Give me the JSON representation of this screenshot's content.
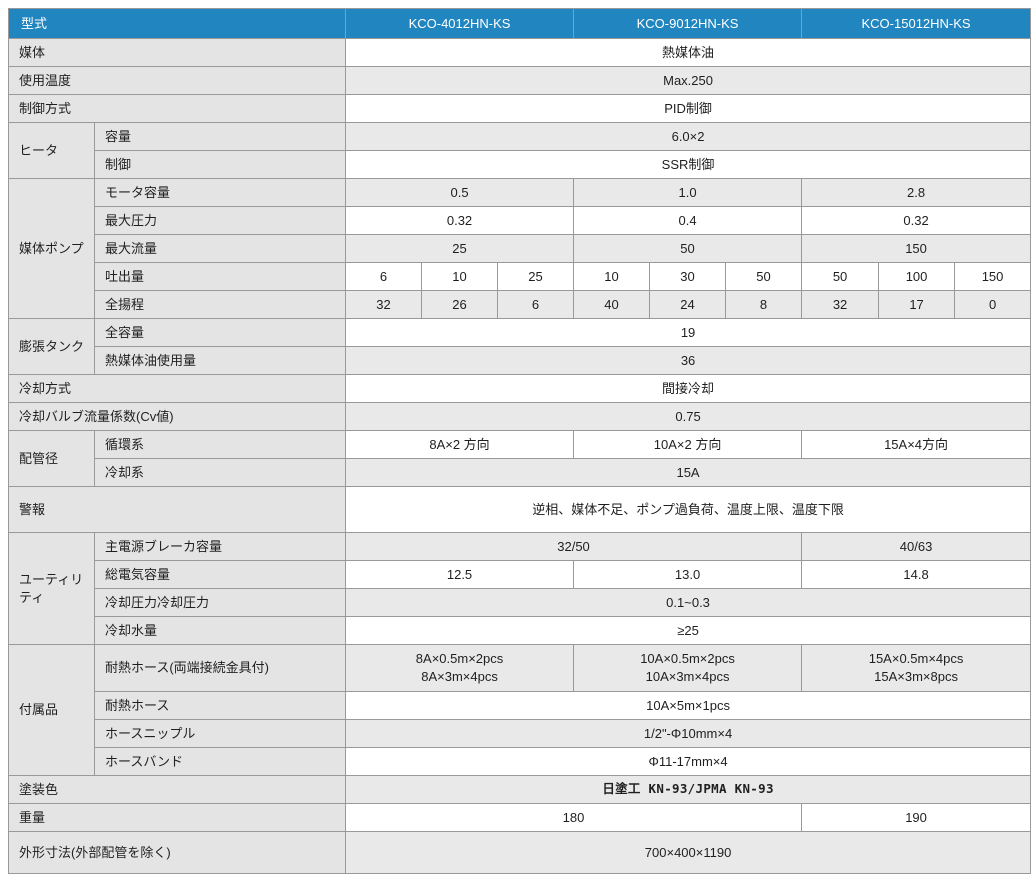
{
  "colors": {
    "header_bg": "#2186C0",
    "header_text": "#ffffff",
    "label_bg": "#e4e4e4",
    "stripe_bg": "#e9e9e9",
    "border": "#999999"
  },
  "header": {
    "corner_label": "型式",
    "models": [
      "KCO-4012HN-KS",
      "KCO-9012HN-KS",
      "KCO-15012HN-KS"
    ]
  },
  "rows": [
    {
      "label": "媒体",
      "full": true,
      "cells": [
        {
          "text": "熱媒体油",
          "span": 3
        }
      ]
    },
    {
      "label": "使用温度",
      "full": true,
      "cells": [
        {
          "text": "Max.250",
          "span": 3
        }
      ]
    },
    {
      "label": "制御方式",
      "full": true,
      "cells": [
        {
          "text": "PID制御",
          "span": 3
        }
      ]
    },
    {
      "group": "ヒータ",
      "group_span": 2,
      "label": "容量",
      "cells": [
        {
          "text": "6.0×2",
          "span": 3
        }
      ]
    },
    {
      "label": "制御",
      "cells": [
        {
          "text": "SSR制御",
          "span": 3
        }
      ]
    },
    {
      "group": "媒体ポンプ",
      "group_span": 5,
      "label": "モータ容量",
      "cells": [
        {
          "text": "0.5"
        },
        {
          "text": "1.0"
        },
        {
          "text": "2.8"
        }
      ]
    },
    {
      "label": "最大圧力",
      "cells": [
        {
          "text": "0.32"
        },
        {
          "text": "0.4"
        },
        {
          "text": "0.32"
        }
      ]
    },
    {
      "label": "最大流量",
      "cells": [
        {
          "text": "25"
        },
        {
          "text": "50"
        },
        {
          "text": "150"
        }
      ]
    },
    {
      "label": "吐出量",
      "subcells": [
        "6",
        "10",
        "25",
        "10",
        "30",
        "50",
        "50",
        "100",
        "150"
      ]
    },
    {
      "label": "全揚程",
      "subcells": [
        "32",
        "26",
        "6",
        "40",
        "24",
        "8",
        "32",
        "17",
        "0"
      ]
    },
    {
      "group": "膨張タンク",
      "group_span": 2,
      "label": "全容量",
      "cells": [
        {
          "text": "19",
          "span": 3
        }
      ]
    },
    {
      "label": "熱媒体油使用量",
      "cells": [
        {
          "text": "36",
          "span": 3
        }
      ]
    },
    {
      "label": "冷却方式",
      "full": true,
      "cells": [
        {
          "text": "間接冷却",
          "span": 3
        }
      ]
    },
    {
      "label": "冷却バルブ流量係数(Cv値)",
      "full": true,
      "cells": [
        {
          "text": "0.75",
          "span": 3
        }
      ]
    },
    {
      "group": "配管径",
      "group_span": 2,
      "label": "循環系",
      "cells": [
        {
          "text": "8A×2 方向"
        },
        {
          "text": "10A×2 方向"
        },
        {
          "text": "15A×4方向"
        }
      ]
    },
    {
      "label": "冷却系",
      "cells": [
        {
          "text": "15A",
          "span": 3
        }
      ]
    },
    {
      "label": "警報",
      "full": true,
      "tall": true,
      "cells": [
        {
          "text": "逆相、媒体不足、ポンプ過負荷、温度上限、温度下限",
          "span": 3
        }
      ]
    },
    {
      "group": "ユーティリティ",
      "group_span": 4,
      "label": "主電源ブレーカ容量",
      "cells": [
        {
          "text": "32/50",
          "span": 2
        },
        {
          "text": "40/63"
        }
      ]
    },
    {
      "label": "総電気容量",
      "cells": [
        {
          "text": "12.5"
        },
        {
          "text": "13.0"
        },
        {
          "text": "14.8"
        }
      ]
    },
    {
      "label": "冷却圧力冷却圧力",
      "cells": [
        {
          "text": "0.1~0.3",
          "span": 3
        }
      ]
    },
    {
      "label": "冷却水量",
      "cells": [
        {
          "text": "≥25",
          "span": 3
        }
      ]
    },
    {
      "group": "付属品",
      "group_span": 4,
      "label": "耐熱ホース(両端接続金具付)",
      "tall2": true,
      "cells": [
        {
          "lines": [
            "8A×0.5m×2pcs",
            "8A×3m×4pcs"
          ]
        },
        {
          "lines": [
            "10A×0.5m×2pcs",
            "10A×3m×4pcs"
          ]
        },
        {
          "lines": [
            "15A×0.5m×4pcs",
            "15A×3m×8pcs"
          ]
        }
      ]
    },
    {
      "label": "耐熱ホース",
      "cells": [
        {
          "text": "10A×5m×1pcs",
          "span": 3
        }
      ]
    },
    {
      "label": "ホースニップル",
      "cells": [
        {
          "text": "1/2\"-Φ10mm×4",
          "span": 3
        }
      ]
    },
    {
      "label": "ホースバンド",
      "cells": [
        {
          "text": "Φ11-17mm×4",
          "span": 3
        }
      ]
    },
    {
      "label": "塗装色",
      "full": true,
      "cells": [
        {
          "text": "日塗工 KN-93/JPMA KN-93",
          "span": 3,
          "mono": true
        }
      ]
    },
    {
      "label": "重量",
      "full": true,
      "cells": [
        {
          "text": "180",
          "span": 2
        },
        {
          "text": "190"
        }
      ]
    },
    {
      "label": "外形寸法(外部配管を除く)",
      "full": true,
      "tall3": true,
      "cells": [
        {
          "text": "700×400×1190",
          "span": 3
        }
      ]
    }
  ]
}
